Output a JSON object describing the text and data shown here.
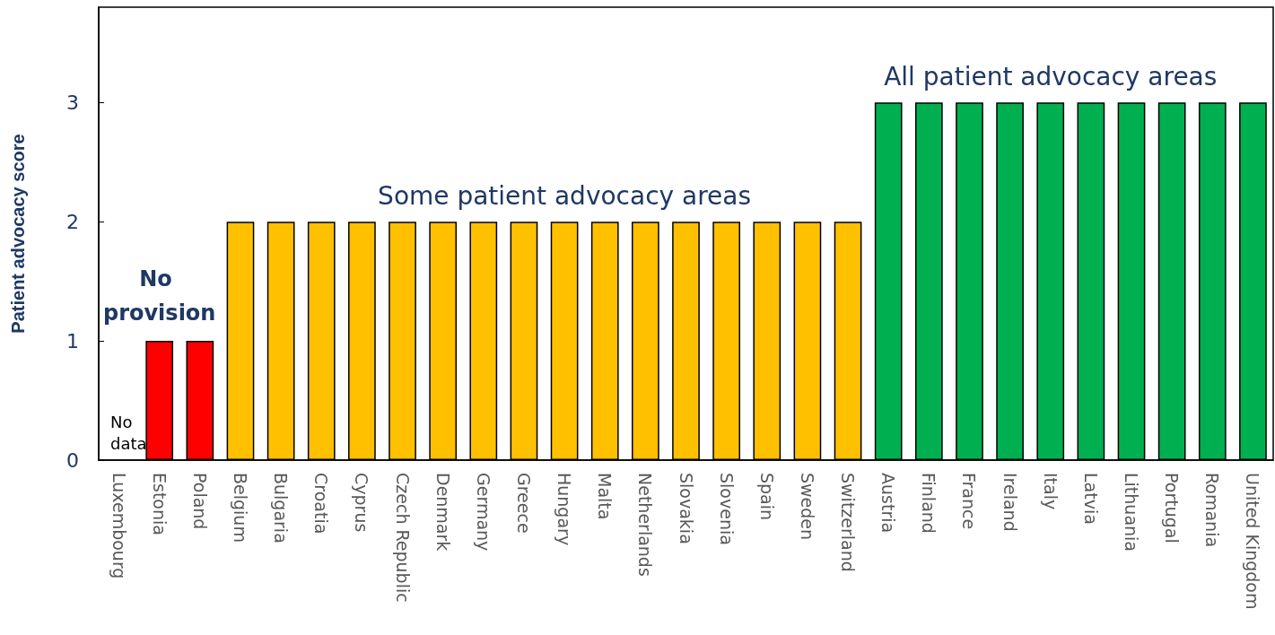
{
  "chart_data": {
    "type": "bar",
    "ylabel": "Patient advocacy score",
    "categories": [
      "Luxembourg",
      "Estonia",
      "Poland",
      "Belgium",
      "Bulgaria",
      "Croatia",
      "Cyprus",
      "Czech Republic",
      "Denmark",
      "Germany",
      "Greece",
      "Hungary",
      "Malta",
      "Netherlands",
      "Slovakia",
      "Slovenia",
      "Spain",
      "Sweden",
      "Switzerland",
      "Austria",
      "Finland",
      "France",
      "Ireland",
      "Italy",
      "Latvia",
      "Lithuania",
      "Portugal",
      "Romania",
      "United Kingdom"
    ],
    "values": [
      null,
      1,
      1,
      2,
      2,
      2,
      2,
      2,
      2,
      2,
      2,
      2,
      2,
      2,
      2,
      2,
      2,
      2,
      2,
      3,
      3,
      3,
      3,
      3,
      3,
      3,
      3,
      3,
      3
    ],
    "colors": [
      null,
      "#ff0000",
      "#ff0000",
      "#ffc000",
      "#ffc000",
      "#ffc000",
      "#ffc000",
      "#ffc000",
      "#ffc000",
      "#ffc000",
      "#ffc000",
      "#ffc000",
      "#ffc000",
      "#ffc000",
      "#ffc000",
      "#ffc000",
      "#ffc000",
      "#ffc000",
      "#ffc000",
      "#00b050",
      "#00b050",
      "#00b050",
      "#00b050",
      "#00b050",
      "#00b050",
      "#00b050",
      "#00b050",
      "#00b050",
      "#00b050"
    ],
    "ylim": [
      0,
      3.8
    ],
    "yticks": [
      0,
      1,
      2,
      3
    ],
    "grid": false,
    "annotations": [
      "No data",
      {
        "text": "No provision",
        "x": "Estonia",
        "y": 1
      },
      {
        "text": "Some patient advocacy areas",
        "x": "Hungary",
        "y": 2
      },
      {
        "text": "All patient advocacy areas",
        "x": "Italy",
        "y": 3
      }
    ]
  }
}
